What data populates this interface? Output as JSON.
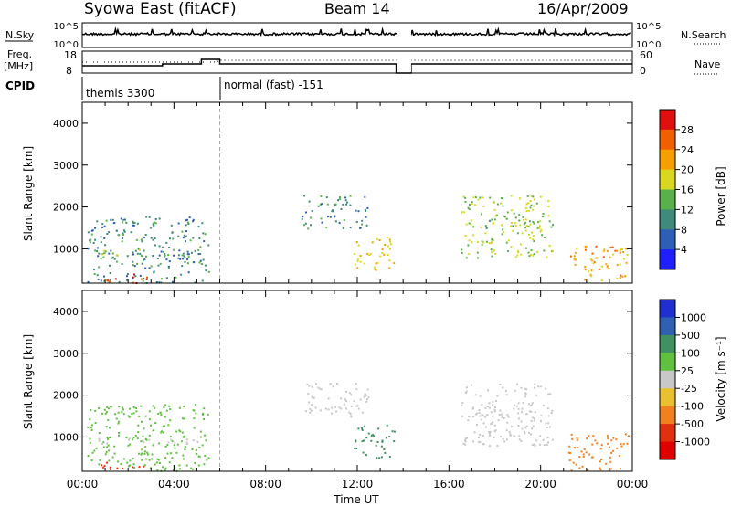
{
  "header": {
    "station": "Syowa East (fitACF)",
    "beam": "Beam 14",
    "date": "16/Apr/2009"
  },
  "summary_panels": {
    "nsky_label": "N.Sky",
    "nsky_ticks": [
      "10^5",
      "10^0"
    ],
    "nsearch_label": "N.Search",
    "nsearch_ticks": [
      "10^5",
      "10^0"
    ],
    "freq_label_line1": "Freq.",
    "freq_label_line2": "[MHz]",
    "freq_ticks": [
      "18",
      "8"
    ],
    "nave_label": "Nave",
    "nave_ticks": [
      "60",
      "0"
    ],
    "cpid_label": "CPID",
    "cpid_modes": [
      {
        "name": "themis 3300",
        "start_hour": 0,
        "end_hour": 6
      },
      {
        "name": "normal (fast) -151",
        "start_hour": 6,
        "end_hour": 24
      }
    ],
    "data_gap_hours": [
      13.75,
      14.35
    ]
  },
  "x_axis": {
    "label": "Time UT",
    "ticks": [
      "00:00",
      "04:00",
      "08:00",
      "12:00",
      "16:00",
      "20:00",
      "00:00"
    ],
    "range_hours": [
      0,
      24
    ]
  },
  "y_axis": {
    "label": "Slant Range [km]",
    "ticks": [
      "1000",
      "2000",
      "3000",
      "4000"
    ],
    "range_km": [
      180,
      4500
    ]
  },
  "power_panel": {
    "colorbar_label": "Power [dB]",
    "colorbar_ticks": [
      "4",
      "8",
      "12",
      "16",
      "20",
      "24",
      "28"
    ],
    "colors": [
      "#1f1fff",
      "#2e5fb8",
      "#3f8a7a",
      "#5ab04a",
      "#d8d820",
      "#f5a000",
      "#f06000",
      "#e01010"
    ]
  },
  "velocity_panel": {
    "colorbar_label": "Velocity [m s⁻¹]",
    "colorbar_ticks": [
      "1000",
      "500",
      "100",
      "25",
      "-25",
      "-100",
      "-500",
      "-1000"
    ],
    "colors": [
      "#2030d0",
      "#3060b0",
      "#409060",
      "#60c040",
      "#c8c8c8",
      "#e8c030",
      "#f08020",
      "#e03010",
      "#e00000"
    ]
  },
  "chart_data": {
    "type": "heatmap",
    "title": "Syowa East (fitACF)",
    "xlabel": "Time UT",
    "ylabel": "Slant Range [km]",
    "xlim": [
      0,
      24
    ],
    "ylim": [
      180,
      4500
    ],
    "note_gap": [
      13.75,
      14.35
    ],
    "echo_regions": [
      {
        "t0": 0.2,
        "t1": 5.5,
        "r0": 200,
        "r1": 1800,
        "power_db": 10,
        "velocity": 50
      },
      {
        "t0": 0.8,
        "t1": 2.8,
        "r0": 200,
        "r1": 420,
        "power_db": 28,
        "velocity": -800
      },
      {
        "t0": 0.3,
        "t1": 5.2,
        "r0": 850,
        "r1": 1000,
        "power_db": 14,
        "velocity": 10
      },
      {
        "t0": 9.5,
        "t1": 12.5,
        "r0": 1500,
        "r1": 2300,
        "power_db": 10,
        "velocity": 20
      },
      {
        "t0": 11.8,
        "t1": 13.6,
        "r0": 500,
        "r1": 1300,
        "power_db": 20,
        "velocity": 150
      },
      {
        "t0": 16.5,
        "t1": 20.5,
        "r0": 800,
        "r1": 2300,
        "power_db": 16,
        "velocity": 10
      },
      {
        "t0": 16.8,
        "t1": 20.0,
        "r0": 1450,
        "r1": 1700,
        "power_db": 14,
        "velocity": 0
      },
      {
        "t0": 21.2,
        "t1": 23.8,
        "r0": 200,
        "r1": 1100,
        "power_db": 22,
        "velocity": -300
      }
    ]
  }
}
